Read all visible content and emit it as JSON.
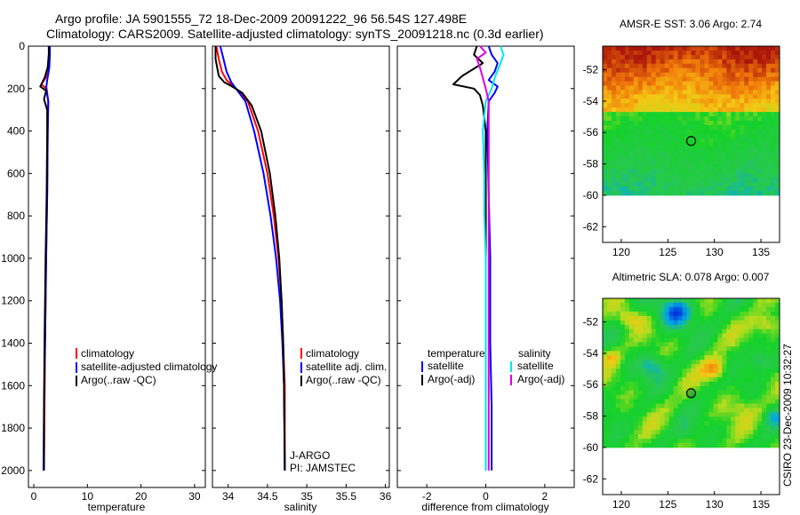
{
  "figure": {
    "title_line1": "Argo profile: JA 5901555_72 18-Dec-2009 20091222_96 56.54S 127.498E",
    "title_line2": "Climatology: CARS2009. Satellite-adjusted climatology: synTS_20091218.nc (0.3d earlier)",
    "side_stamp": "CSIRO 23-Dec-2009 10:32:27"
  },
  "colors": {
    "climatology": "#ff0000",
    "satellite": "#0000ff",
    "argo": "#000000",
    "sat_salinity": "#00e8e8",
    "argo_salinity": "#e000e0"
  },
  "chart_data": [
    {
      "type": "line",
      "id": "temperature",
      "xlabel": "temperature",
      "ylabel": "",
      "xlim": [
        -1,
        32
      ],
      "ylim": [
        2080,
        0
      ],
      "xticks": [
        0,
        10,
        20,
        30
      ],
      "yticks": [
        0,
        200,
        400,
        600,
        800,
        1000,
        1200,
        1400,
        1600,
        1800,
        2000
      ],
      "legend": [
        "climatology",
        "satellite-adjusted climatology",
        "Argo(..raw -QC)"
      ],
      "series": [
        {
          "name": "climatology",
          "color": "#ff0000",
          "points": [
            [
              2.9,
              0
            ],
            [
              2.8,
              40
            ],
            [
              2.6,
              100
            ],
            [
              2.2,
              150
            ],
            [
              1.4,
              180
            ],
            [
              2.4,
              200
            ],
            [
              2.7,
              260
            ],
            [
              2.6,
              400
            ],
            [
              2.5,
              700
            ],
            [
              2.3,
              1000
            ],
            [
              2.1,
              1400
            ],
            [
              2.0,
              1700
            ],
            [
              1.9,
              2000
            ]
          ]
        },
        {
          "name": "satellite",
          "color": "#0000ff",
          "points": [
            [
              3.0,
              0
            ],
            [
              3.0,
              40
            ],
            [
              2.9,
              100
            ],
            [
              2.5,
              160
            ],
            [
              2.3,
              200
            ],
            [
              2.7,
              260
            ],
            [
              2.6,
              400
            ],
            [
              2.5,
              700
            ],
            [
              2.3,
              1000
            ],
            [
              2.1,
              1400
            ],
            [
              1.9,
              1700
            ],
            [
              1.8,
              2000
            ]
          ]
        },
        {
          "name": "Argo",
          "color": "#000000",
          "points": [
            [
              2.8,
              0
            ],
            [
              2.8,
              40
            ],
            [
              2.6,
              100
            ],
            [
              2.0,
              150
            ],
            [
              1.2,
              190
            ],
            [
              2.3,
              210
            ],
            [
              1.9,
              250
            ],
            [
              2.5,
              300
            ],
            [
              2.5,
              400
            ],
            [
              2.4,
              700
            ],
            [
              2.2,
              1000
            ],
            [
              2.0,
              1400
            ],
            [
              1.9,
              1700
            ],
            [
              1.9,
              2000
            ]
          ]
        }
      ]
    },
    {
      "type": "line",
      "id": "salinity",
      "xlabel": "salinity",
      "ylabel": "",
      "xlim": [
        33.8,
        36.05
      ],
      "ylim": [
        2080,
        0
      ],
      "xticks": [
        34,
        34.5,
        35,
        35.5,
        36
      ],
      "xtick_labels": [
        "34",
        "34.5",
        "35",
        "35.5",
        "36"
      ],
      "legend": [
        "climatology",
        "satellite adj. clim.",
        "Argo(..raw -QC)"
      ],
      "annotation": [
        "J-ARGO",
        "PI: JAMSTEC"
      ],
      "series": [
        {
          "name": "climatology",
          "color": "#ff0000",
          "points": [
            [
              33.85,
              0
            ],
            [
              33.88,
              60
            ],
            [
              33.92,
              120
            ],
            [
              33.98,
              160
            ],
            [
              34.1,
              200
            ],
            [
              34.25,
              260
            ],
            [
              34.38,
              400
            ],
            [
              34.5,
              600
            ],
            [
              34.58,
              800
            ],
            [
              34.64,
              1000
            ],
            [
              34.68,
              1200
            ],
            [
              34.7,
              1400
            ],
            [
              34.72,
              1600
            ],
            [
              34.72,
              2000
            ]
          ]
        },
        {
          "name": "satellite",
          "color": "#0000ff",
          "points": [
            [
              33.9,
              0
            ],
            [
              33.94,
              60
            ],
            [
              33.98,
              120
            ],
            [
              34.04,
              170
            ],
            [
              34.12,
              210
            ],
            [
              34.22,
              260
            ],
            [
              34.33,
              400
            ],
            [
              34.45,
              600
            ],
            [
              34.54,
              800
            ],
            [
              34.61,
              1000
            ],
            [
              34.66,
              1200
            ],
            [
              34.69,
              1400
            ],
            [
              34.71,
              1600
            ],
            [
              34.72,
              2000
            ]
          ]
        },
        {
          "name": "Argo",
          "color": "#000000",
          "points": [
            [
              33.84,
              0
            ],
            [
              33.84,
              60
            ],
            [
              33.86,
              100
            ],
            [
              33.88,
              140
            ],
            [
              33.95,
              170
            ],
            [
              34.05,
              190
            ],
            [
              34.18,
              220
            ],
            [
              34.3,
              280
            ],
            [
              34.42,
              400
            ],
            [
              34.53,
              600
            ],
            [
              34.6,
              800
            ],
            [
              34.65,
              1000
            ],
            [
              34.68,
              1200
            ],
            [
              34.7,
              1400
            ],
            [
              34.71,
              1600
            ],
            [
              34.72,
              2000
            ]
          ]
        }
      ]
    },
    {
      "type": "line",
      "id": "difference",
      "xlabel": "difference from climatology",
      "ylabel": "",
      "xlim": [
        -3.0,
        3.0
      ],
      "ylim": [
        2080,
        0
      ],
      "xticks": [
        -2,
        0,
        2
      ],
      "legend_temperature_header": "temperature",
      "legend_salinity_header": "salinity",
      "legend_temperature": [
        "satellite",
        "Argo(-adj)"
      ],
      "legend_salinity": [
        "satellite",
        "Argo(-adj)"
      ],
      "series": [
        {
          "name": "temperature satellite",
          "color": "#0000ff",
          "points": [
            [
              0.1,
              0
            ],
            [
              0.2,
              40
            ],
            [
              0.4,
              80
            ],
            [
              0.3,
              120
            ],
            [
              0.1,
              160
            ],
            [
              0.4,
              190
            ],
            [
              0.3,
              220
            ],
            [
              0.1,
              260
            ],
            [
              0.05,
              400
            ],
            [
              0.1,
              700
            ],
            [
              0.15,
              1000
            ],
            [
              0.15,
              1400
            ],
            [
              0.2,
              1700
            ],
            [
              0.2,
              2000
            ]
          ]
        },
        {
          "name": "temperature Argo",
          "color": "#000000",
          "points": [
            [
              -0.3,
              0
            ],
            [
              -0.4,
              40
            ],
            [
              -0.1,
              80
            ],
            [
              -0.8,
              140
            ],
            [
              -1.1,
              180
            ],
            [
              -0.4,
              200
            ],
            [
              -0.2,
              230
            ],
            [
              -0.1,
              280
            ],
            [
              0.0,
              400
            ],
            [
              0.0,
              700
            ],
            [
              0.0,
              1000
            ],
            [
              0.0,
              1400
            ],
            [
              0.0,
              1700
            ],
            [
              0.0,
              2000
            ]
          ]
        },
        {
          "name": "salinity satellite",
          "color": "#00e8e8",
          "points": [
            [
              0.5,
              0
            ],
            [
              0.6,
              40
            ],
            [
              0.5,
              80
            ],
            [
              0.3,
              150
            ],
            [
              0.2,
              200
            ],
            [
              0.0,
              260
            ],
            [
              -0.1,
              400
            ],
            [
              -0.05,
              600
            ],
            [
              -0.05,
              800
            ],
            [
              0.0,
              1000
            ],
            [
              0.0,
              1400
            ],
            [
              0.0,
              1700
            ],
            [
              0.0,
              2000
            ]
          ]
        },
        {
          "name": "salinity Argo",
          "color": "#e000e0",
          "points": [
            [
              -0.2,
              0
            ],
            [
              0.0,
              30
            ],
            [
              -0.3,
              60
            ],
            [
              -0.2,
              100
            ],
            [
              -0.1,
              150
            ],
            [
              0.0,
              200
            ],
            [
              0.1,
              260
            ],
            [
              0.1,
              400
            ],
            [
              0.1,
              700
            ],
            [
              0.1,
              1000
            ],
            [
              0.1,
              1400
            ],
            [
              0.1,
              1700
            ],
            [
              0.1,
              2000
            ]
          ]
        }
      ]
    },
    {
      "type": "heatmap",
      "id": "sst-map",
      "title": "AMSR-E SST: 3.06 Argo: 2.74",
      "xlim": [
        118,
        137
      ],
      "ylim": [
        -63,
        -50.5
      ],
      "xticks": [
        120,
        125,
        130,
        135
      ],
      "yticks": [
        -52,
        -54,
        -56,
        -58,
        -60,
        -62
      ],
      "data_extent": {
        "lat_min": -60,
        "lat_max": -50.5
      },
      "marker": {
        "lon": 127.498,
        "lat": -56.54
      }
    },
    {
      "type": "heatmap",
      "id": "sla-map",
      "title": "Altimetric SLA: 0.078 Argo: 0.007",
      "xlim": [
        118,
        137
      ],
      "ylim": [
        -63,
        -50.5
      ],
      "xticks": [
        120,
        125,
        130,
        135
      ],
      "yticks": [
        -52,
        -54,
        -56,
        -58,
        -60,
        -62
      ],
      "data_extent": {
        "lat_min": -60,
        "lat_max": -50.5
      },
      "marker": {
        "lon": 127.498,
        "lat": -56.54
      }
    }
  ]
}
